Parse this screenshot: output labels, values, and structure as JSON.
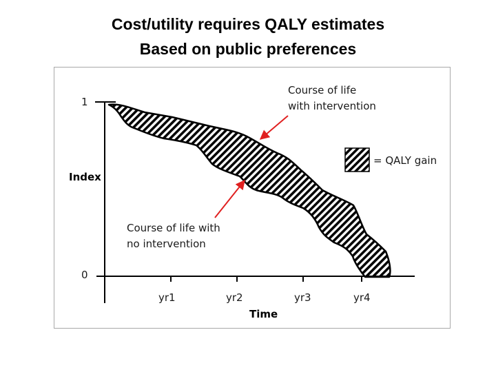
{
  "title": {
    "line1": "Cost/utility requires QALY estimates",
    "line2": "Based on public preferences"
  },
  "diagram": {
    "y_axis_label": "Index",
    "x_axis_label": "Time",
    "y_ticks": [
      {
        "label": "1",
        "value": 1
      },
      {
        "label": "0",
        "value": 0
      }
    ],
    "x_ticks": [
      {
        "label": "yr1",
        "value": 1
      },
      {
        "label": "yr2",
        "value": 2
      },
      {
        "label": "yr3",
        "value": 3
      },
      {
        "label": "yr4",
        "value": 4
      }
    ],
    "legend_label": "= QALY gain",
    "annotation_with": [
      "Course of life",
      "with intervention"
    ],
    "annotation_without": [
      "Course of life with",
      "no intervention"
    ],
    "arrow_color": "#e02020"
  }
}
